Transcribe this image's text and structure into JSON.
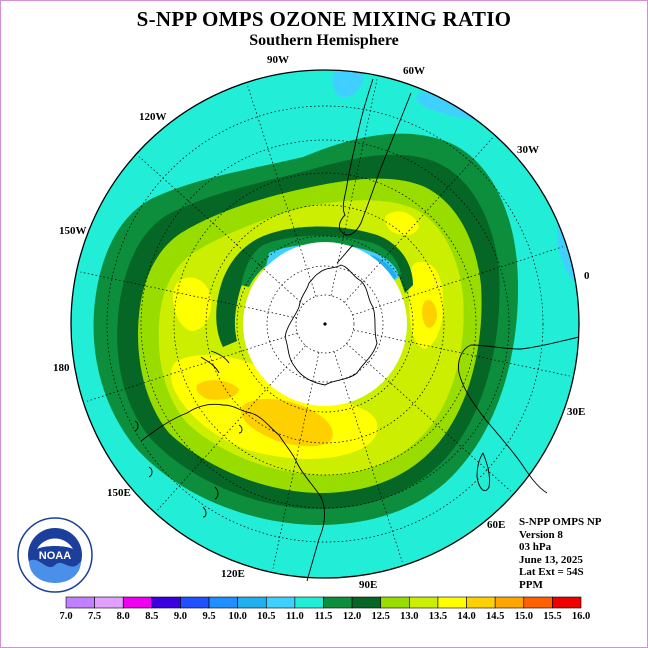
{
  "header": {
    "title": "S-NPP OMPS OZONE MIXING RATIO",
    "subtitle": "Southern Hemisphere"
  },
  "longitude_labels": [
    "90W",
    "60W",
    "30W",
    "0",
    "30E",
    "60E",
    "90E",
    "120E",
    "150E",
    "180",
    "150W",
    "120W"
  ],
  "info": {
    "lines": [
      "S-NPP OMPS NP",
      "Version 8",
      "03 hPa",
      "June 13, 2025",
      "Lat Ext = 54S",
      "PPM"
    ]
  },
  "logo": {
    "text": "NOAA",
    "ring_text": "NATIONAL OCEANIC AND ATMOSPHERIC ADMINISTRATION · U.S. DEPARTMENT OF COMMERCE"
  },
  "colorbar": {
    "ticks": [
      "7.0",
      "7.5",
      "8.0",
      "8.5",
      "9.0",
      "9.5",
      "10.0",
      "10.5",
      "11.0",
      "11.5",
      "12.0",
      "12.5",
      "13.0",
      "13.5",
      "14.0",
      "14.5",
      "15.0",
      "15.5",
      "16.0"
    ],
    "colors": [
      "#c080ff",
      "#e0a0ff",
      "#f000f0",
      "#3a00e0",
      "#2050ff",
      "#1e90ff",
      "#20b0f0",
      "#40d0ff",
      "#22eed8",
      "#0c8e3c",
      "#066626",
      "#99dd00",
      "#ccee00",
      "#ffff00",
      "#ffd000",
      "#ffa500",
      "#ff6000",
      "#ee0000",
      "#7a4a2a"
    ]
  }
}
